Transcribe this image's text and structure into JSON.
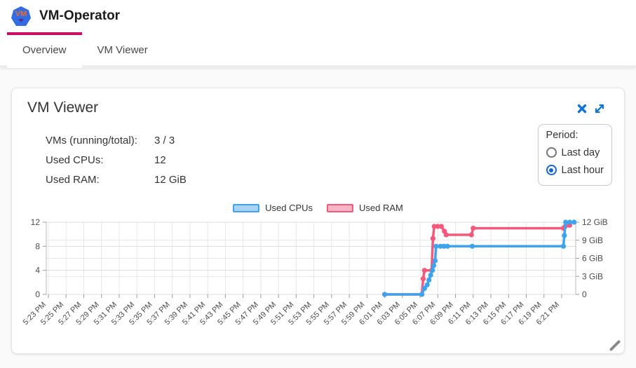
{
  "header": {
    "title": "VM-Operator",
    "logo_text": "VM"
  },
  "tabs": [
    {
      "label": "Overview",
      "active": true
    },
    {
      "label": "VM Viewer",
      "active": false
    }
  ],
  "card": {
    "title": "VM Viewer",
    "stats": [
      {
        "label": "VMs (running/total):",
        "value": "3 / 3"
      },
      {
        "label": "Used CPUs:",
        "value": "12"
      },
      {
        "label": "Used RAM:",
        "value": "12 GiB"
      }
    ],
    "period": {
      "label": "Period:",
      "options": [
        {
          "label": "Last day",
          "selected": false
        },
        {
          "label": "Last hour",
          "selected": true
        }
      ]
    }
  },
  "colors": {
    "accent": "#ca0d63",
    "icon_blue": "#1273d8",
    "radio_blue": "#1565d8",
    "cpu_line": "#3fa2ec",
    "cpu_fill": "#a9d3f5",
    "ram_line": "#f5587b",
    "ram_fill": "#f9b6c4",
    "grid": "#e7e7e7",
    "axis": "#bbbbbb"
  },
  "chart_data": {
    "type": "line",
    "title": "",
    "xlabel": "",
    "ylabel_left": "",
    "ylabel_right": "",
    "grid": true,
    "legend_position": "top-center",
    "x_axis": {
      "unit": "time",
      "tick_interval_minutes": 2,
      "tick_labels": [
        "5:23 PM",
        "5:25 PM",
        "5:27 PM",
        "5:29 PM",
        "5:31 PM",
        "5:33 PM",
        "5:35 PM",
        "5:37 PM",
        "5:39 PM",
        "5:41 PM",
        "5:43 PM",
        "5:45 PM",
        "5:47 PM",
        "5:49 PM",
        "5:51 PM",
        "5:53 PM",
        "5:55 PM",
        "5:57 PM",
        "5:59 PM",
        "6:01 PM",
        "6:03 PM",
        "6:05 PM",
        "6:07 PM",
        "6:09 PM",
        "6:11 PM",
        "6:13 PM",
        "6:15 PM",
        "6:17 PM",
        "6:19 PM",
        "6:21 PM"
      ]
    },
    "y_left": {
      "ticks": [
        0,
        4,
        8,
        12
      ],
      "tick_labels": [
        "0",
        "4",
        "8",
        "12"
      ],
      "range": [
        0,
        12
      ]
    },
    "y_right": {
      "ticks": [
        0,
        3,
        6,
        9,
        12
      ],
      "tick_labels": [
        "0",
        "3 GiB",
        "6 GiB",
        "9 GiB",
        "12 GiB"
      ],
      "range": [
        0,
        12
      ]
    },
    "series": [
      {
        "name": "Used RAM",
        "axis": "right",
        "unit": "GiB",
        "color": "#f5587b",
        "fill": "#f9b6c4",
        "points_minутes_note": "x = minutes after 5:23 PM, y = GiB",
        "points": [
          [
            38,
            0
          ],
          [
            42.2,
            0
          ],
          [
            42.35,
            2.6
          ],
          [
            42.5,
            4
          ],
          [
            43.3,
            4
          ],
          [
            43.45,
            9.3
          ],
          [
            43.6,
            11.3
          ],
          [
            44.0,
            11.3
          ],
          [
            44.4,
            11.3
          ],
          [
            44.75,
            10.5
          ],
          [
            44.95,
            9.9
          ],
          [
            47.8,
            9.9
          ],
          [
            48.0,
            11.0
          ],
          [
            58.2,
            11.0
          ],
          [
            58.4,
            11.3
          ],
          [
            58.9,
            11.5
          ]
        ]
      },
      {
        "name": "Used CPUs",
        "axis": "left",
        "unit": "CPUs",
        "color": "#3fa2ec",
        "fill": "#a9d3f5",
        "points": [
          [
            38,
            0
          ],
          [
            42.2,
            0
          ],
          [
            42.5,
            1
          ],
          [
            42.8,
            1.6
          ],
          [
            43.0,
            2.4
          ],
          [
            43.2,
            3.2
          ],
          [
            43.4,
            4
          ],
          [
            43.55,
            4.8
          ],
          [
            43.7,
            5.6
          ],
          [
            43.8,
            8
          ],
          [
            44.3,
            8
          ],
          [
            44.7,
            8
          ],
          [
            45.1,
            8
          ],
          [
            47.9,
            8
          ],
          [
            58.2,
            8
          ],
          [
            58.3,
            9.8
          ],
          [
            58.45,
            12
          ],
          [
            58.9,
            12
          ],
          [
            59.4,
            12
          ]
        ]
      }
    ],
    "legend": [
      {
        "name": "Used CPUs",
        "line": "#3fa2ec",
        "fill": "#a9d3f5"
      },
      {
        "name": "Used RAM",
        "line": "#f5587b",
        "fill": "#f9b6c4"
      }
    ]
  }
}
